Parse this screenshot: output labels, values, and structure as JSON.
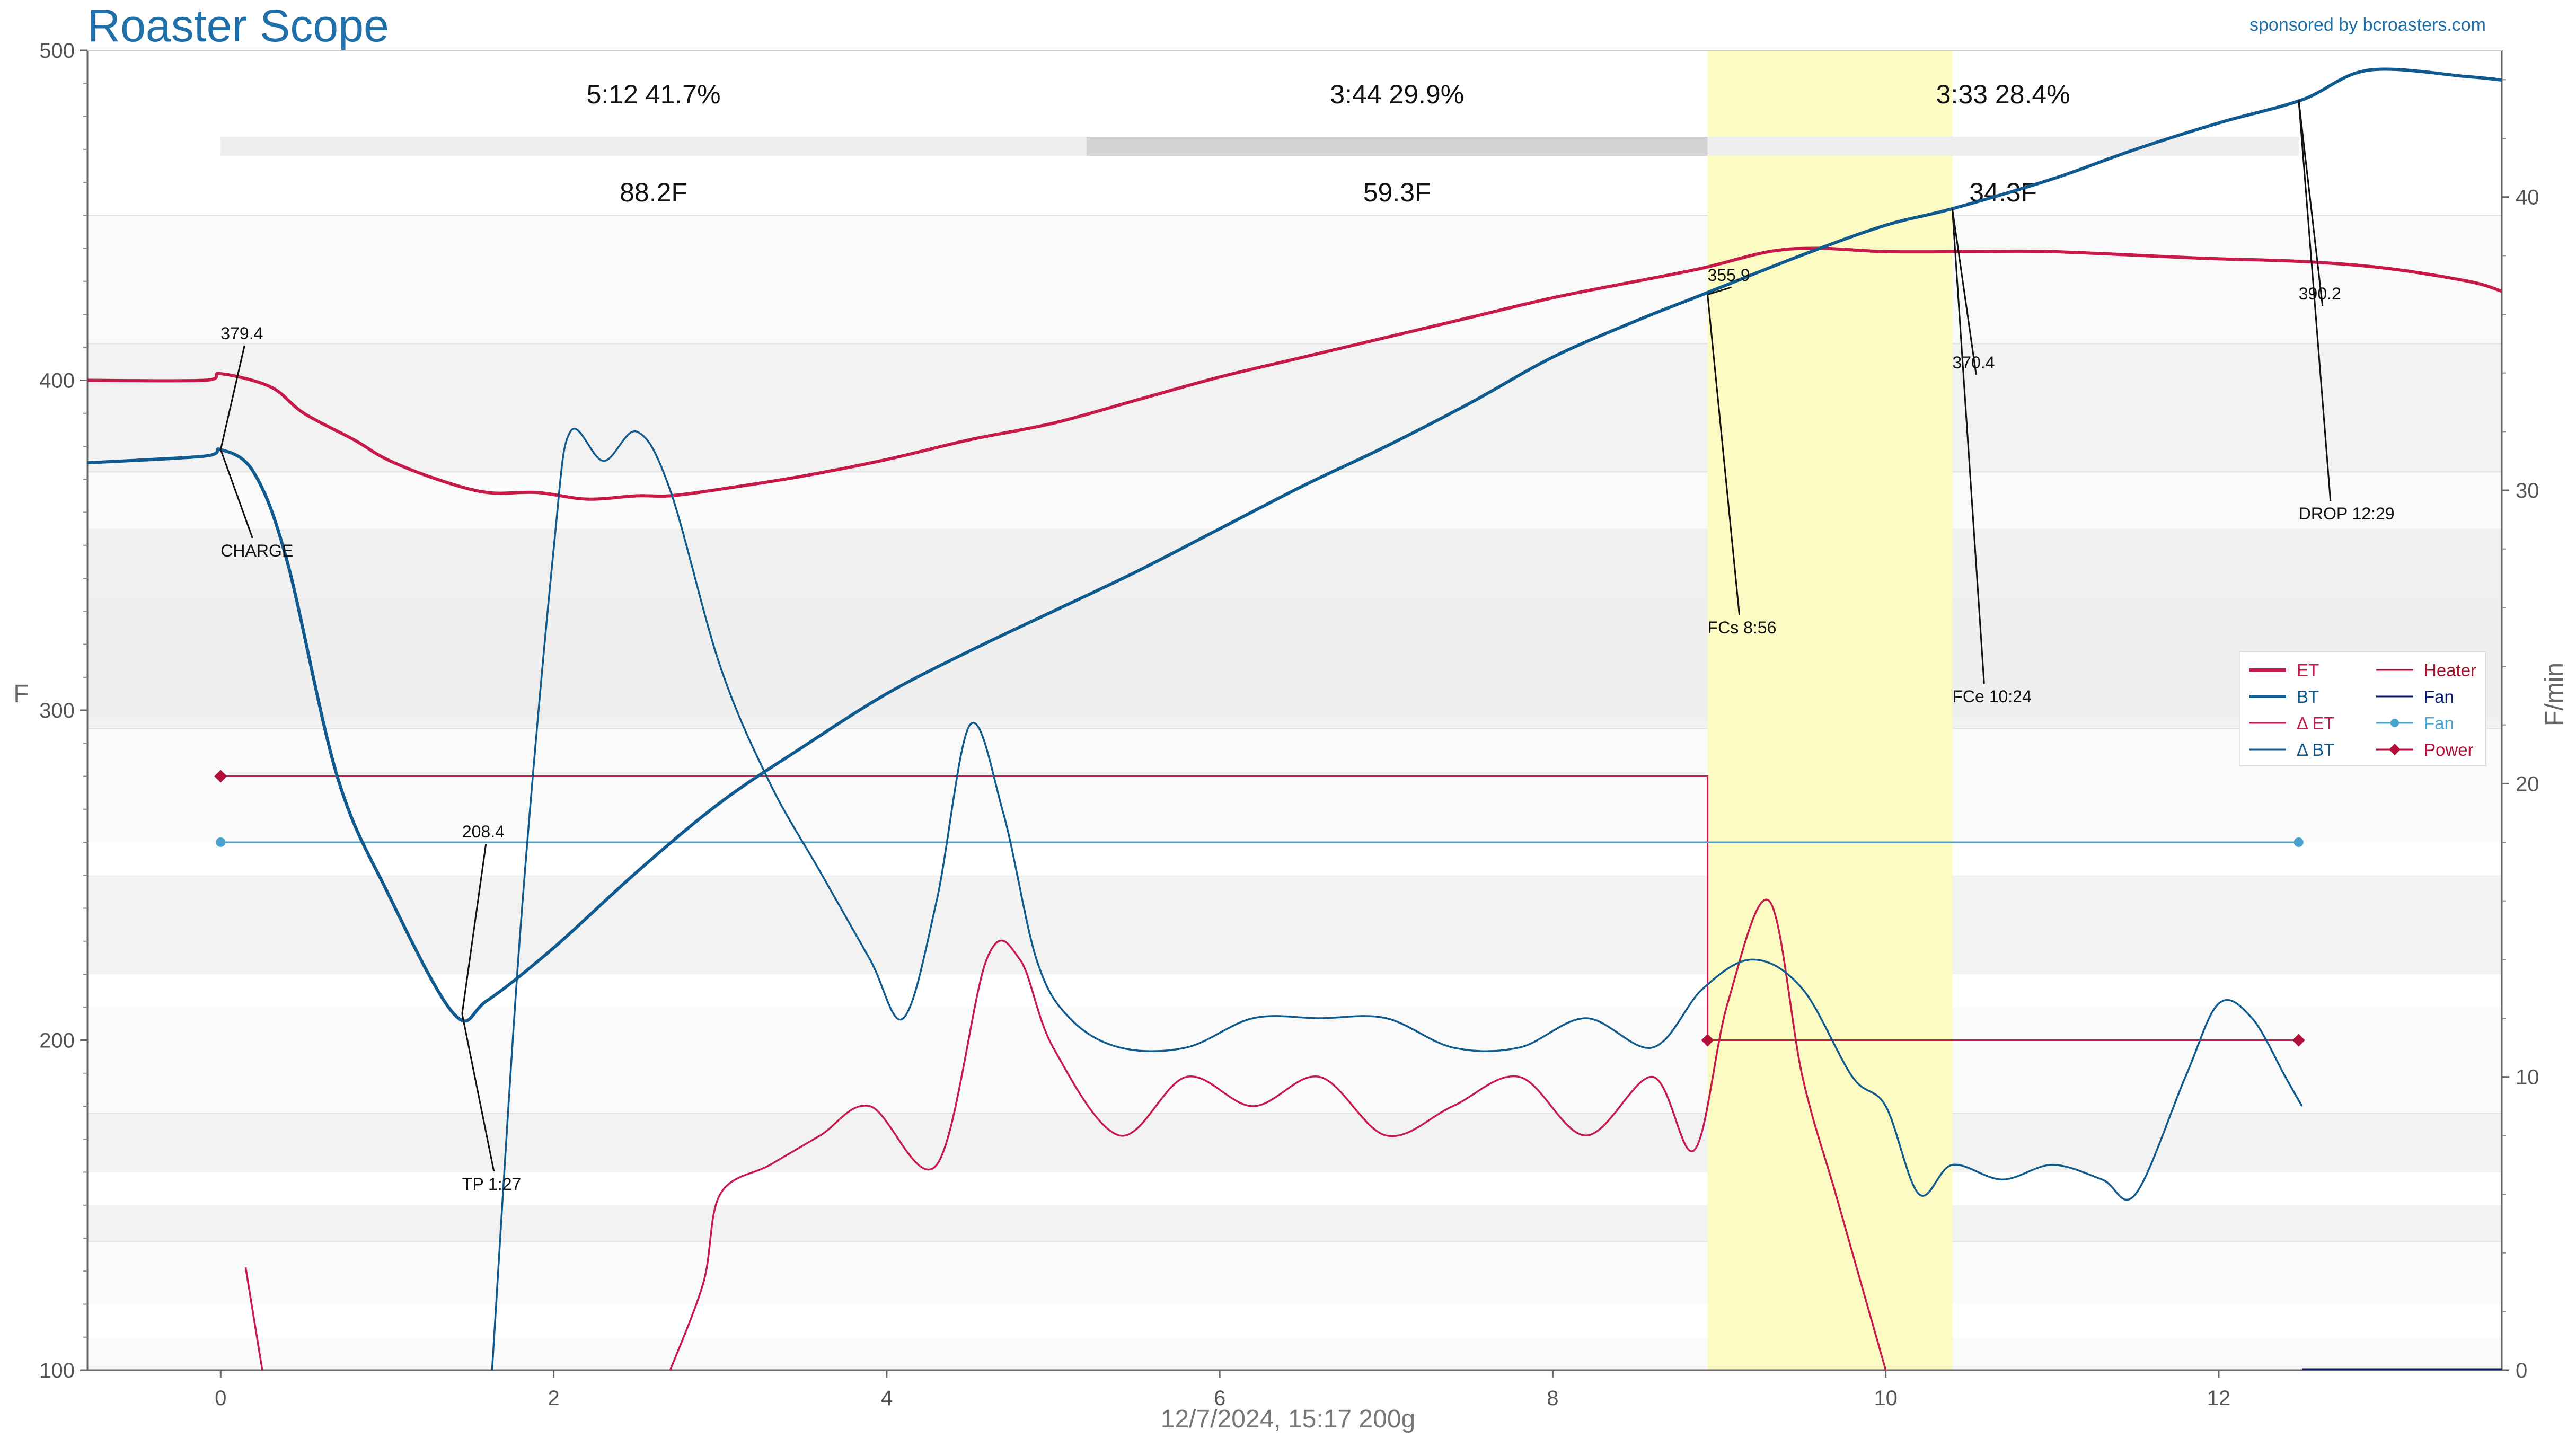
{
  "header": {
    "title": "Roaster Scope",
    "sponsor": "sponsored by bcroasters.com"
  },
  "footer": {
    "text": "12/7/2024, 15:17   200g"
  },
  "chart_data": {
    "type": "line",
    "xlim": [
      -0.8,
      13.7
    ],
    "ylim_left": [
      100,
      500
    ],
    "ylim_right": [
      0,
      45
    ],
    "ylabel_left": "F",
    "ylabel_right": "F/min",
    "x_ticks": [
      0,
      2,
      4,
      6,
      8,
      10,
      12
    ],
    "y_ticks_left": [
      100,
      200,
      300,
      400,
      500
    ],
    "y_ticks_right": [
      0,
      10,
      20,
      30,
      40
    ],
    "colors": {
      "et": "#c8194b",
      "bt": "#0f5a8e",
      "det": "#c8194b",
      "dbt": "#0f5a8e",
      "heater": "#c8194b",
      "fan_dark": "#0d1a6b",
      "fan": "#4aa3cc",
      "power": "#b0103a",
      "fc_band": "#fdfbc4"
    },
    "phases": [
      {
        "time": "5:12",
        "pct": "41.7%",
        "rise": "88.2F",
        "start": 0,
        "end": 5.2
      },
      {
        "time": "3:44",
        "pct": "29.9%",
        "rise": "59.3F",
        "start": 5.2,
        "end": 8.93
      },
      {
        "time": "3:33",
        "pct": "28.4%",
        "rise": "34.3F",
        "start": 8.93,
        "end": 12.48
      }
    ],
    "fc_band": [
      8.93,
      10.4
    ],
    "series": [
      {
        "name": "ET",
        "axis": "left",
        "x": [
          -0.8,
          -0.1,
          0,
          0.3,
          0.5,
          0.8,
          1.0,
          1.3,
          1.6,
          1.9,
          2.2,
          2.5,
          2.7,
          3.0,
          3.5,
          4.0,
          4.5,
          5.0,
          5.5,
          6.0,
          6.5,
          7.0,
          7.5,
          8.0,
          8.5,
          8.9,
          9.3,
          9.6,
          10.0,
          10.5,
          11.0,
          11.9,
          12.5,
          13.0,
          13.5,
          13.7
        ],
        "y": [
          400,
          400,
          402,
          398,
          390,
          382,
          376,
          370,
          366,
          366,
          364,
          365,
          365,
          367,
          371,
          376,
          382,
          387,
          394,
          401,
          407,
          413,
          419,
          425,
          430,
          434,
          439,
          440,
          439,
          439,
          439,
          437,
          436,
          434,
          430,
          427
        ]
      },
      {
        "name": "BT",
        "axis": "left",
        "x": [
          -0.8,
          -0.1,
          0,
          0.2,
          0.4,
          0.7,
          1.0,
          1.4,
          1.6,
          2.0,
          2.5,
          3.0,
          3.5,
          4.0,
          4.5,
          5.0,
          5.5,
          6.0,
          6.5,
          7.0,
          7.5,
          8.0,
          8.5,
          8.9,
          9.5,
          10.0,
          10.4,
          11.0,
          11.5,
          12.0,
          12.5,
          12.9,
          13.5,
          13.7
        ],
        "y": [
          375,
          377,
          379,
          372,
          345,
          280,
          245,
          208,
          212,
          228,
          251,
          272,
          289,
          305,
          318,
          330,
          342,
          355,
          368,
          380,
          393,
          407,
          418,
          426,
          438,
          447,
          452,
          461,
          470,
          478,
          485,
          494,
          492,
          491
        ]
      },
      {
        "name": "ΔET",
        "axis": "right",
        "x": [
          2.7,
          2.9,
          3.0,
          3.3,
          3.6,
          3.9,
          4.3,
          4.6,
          4.8,
          5.0,
          5.4,
          5.8,
          6.2,
          6.6,
          7.0,
          7.4,
          7.8,
          8.2,
          8.6,
          8.85,
          9.05,
          9.3,
          9.5,
          9.7,
          9.9,
          10.0
        ],
        "y": [
          0,
          3,
          6,
          7,
          8,
          9,
          7,
          14,
          14,
          11,
          8,
          10,
          9,
          10,
          8,
          9,
          10,
          8,
          10,
          7.5,
          12.5,
          16,
          10,
          6,
          2,
          0
        ]
      },
      {
        "name": "ΔET",
        "axis": "right",
        "x": [
          0.15,
          0.25
        ],
        "y": [
          3.5,
          0
        ]
      },
      {
        "name": "ΔBT",
        "axis": "right",
        "x": [
          1.63,
          1.8,
          2.0,
          2.1,
          2.3,
          2.5,
          2.7,
          3.0,
          3.3,
          3.6,
          3.9,
          4.1,
          4.3,
          4.5,
          4.7,
          4.9,
          5.1,
          5.4,
          5.8,
          6.2,
          6.6,
          7.0,
          7.4,
          7.8,
          8.2,
          8.6,
          8.9,
          9.2,
          9.5,
          9.8,
          10.0,
          10.2,
          10.4,
          10.7,
          11.0,
          11.3,
          11.5,
          11.8,
          12.0,
          12.2,
          12.4,
          12.5
        ],
        "y": [
          0,
          15,
          28,
          32,
          31,
          32,
          30,
          24,
          20,
          17,
          14,
          12,
          16,
          22,
          19,
          14,
          12,
          11,
          11,
          12,
          12,
          12,
          11,
          11,
          12,
          11,
          13,
          14,
          13,
          10,
          9,
          6,
          7,
          6.5,
          7,
          6.5,
          6,
          10,
          12.5,
          12,
          10,
          9
        ]
      }
    ],
    "heater": {
      "name": "Heater",
      "x": [
        0,
        8.93,
        8.93,
        12.48
      ],
      "y": [
        20.25,
        20.25,
        11.25,
        11.25
      ]
    },
    "fan": {
      "name": "Fan",
      "x": [
        0,
        12.48
      ],
      "y": [
        18,
        18
      ]
    },
    "power_markers": [
      {
        "x": 0,
        "y": 20.25
      },
      {
        "x": 8.93,
        "y": 11.25
      },
      {
        "x": 12.48,
        "y": 11.25
      }
    ],
    "annotations": [
      {
        "label": "CHARGE",
        "value": "379.4",
        "x": 0,
        "y": 379
      },
      {
        "label": "TP 1:27",
        "value": "208.4",
        "x": 1.45,
        "y": 208
      },
      {
        "label": "FCs 8:56",
        "value": "355.9",
        "x": 8.93,
        "y": 426
      },
      {
        "label": "FCe 10:24",
        "value": "370.4",
        "x": 10.4,
        "y": 452
      },
      {
        "label": "DROP 12:29",
        "value": "390.2",
        "x": 12.48,
        "y": 485
      }
    ],
    "legend": {
      "placement": "right",
      "items": [
        {
          "label": "ET",
          "color": "#c8194b",
          "style": "thick"
        },
        {
          "label": "Heater",
          "color": "#a3122f",
          "style": "line"
        },
        {
          "label": "BT",
          "color": "#0f5a8e",
          "style": "thick"
        },
        {
          "label": "Fan",
          "color": "#0d1a6b",
          "style": "line"
        },
        {
          "label": "Δ ET",
          "color": "#c8194b",
          "style": "line"
        },
        {
          "label": "Fan",
          "color": "#4aa3cc",
          "style": "dot"
        },
        {
          "label": "Δ BT",
          "color": "#0f5a8e",
          "style": "line"
        },
        {
          "label": "Power",
          "color": "#b0103a",
          "style": "diamond"
        }
      ]
    }
  }
}
